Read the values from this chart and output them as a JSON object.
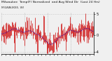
{
  "title_line1": "Milwaukee  Temp(F) Normalized  and Avg Wind Dir  (Last 24 Hrs)",
  "title_line2": "MILWAUKEE, WI",
  "n_points": 144,
  "ylim": [
    -4.5,
    5.5
  ],
  "yticks": [
    5,
    0,
    -4
  ],
  "ytick_labels": [
    "5",
    "0",
    "-4"
  ],
  "bg_color": "#f0f0f0",
  "plot_bg": "#f0f0f0",
  "bar_color": "#cc0000",
  "line_color": "#0000cc",
  "grid_color": "#aaaaaa",
  "title_fontsize": 3.2,
  "subtitle_fontsize": 3.0,
  "tick_fontsize": 3.5
}
